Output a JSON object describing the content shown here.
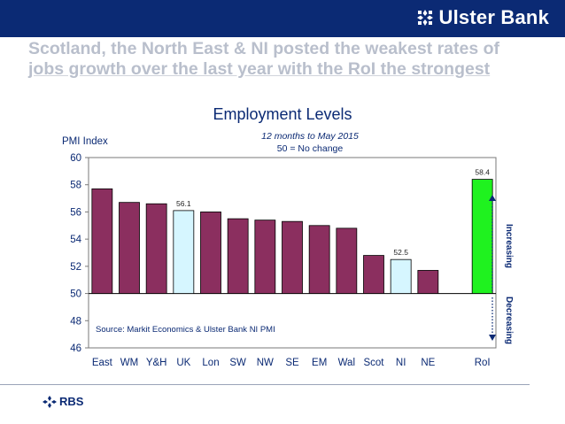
{
  "brand": {
    "name": "Ulster Bank",
    "icon": "ulster-bank-logo-icon"
  },
  "headline": {
    "line1": "Scotland, the North East & NI posted the weakest rates of",
    "line2": "jobs growth over the last year with the RoI the strongest"
  },
  "footer": {
    "rbs_label": "RBS",
    "icon": "rbs-logo-icon"
  },
  "chart_data": {
    "type": "bar",
    "title": "Employment Levels",
    "subtitle": "12 months to May 2015",
    "subtitle2": "50 = No change",
    "ylabel": "PMI Index",
    "xlabel": "",
    "source": "Source: Markit Economics & Ulster Bank NI PMI",
    "ylim": [
      46,
      60
    ],
    "baseline": 50,
    "yticks": [
      "46",
      "48",
      "50",
      "52",
      "54",
      "56",
      "58",
      "60"
    ],
    "categories": [
      "East",
      "WM",
      "Y&H",
      "UK",
      "Lon",
      "SW",
      "NW",
      "SE",
      "EM",
      "Wal",
      "Scot",
      "NI",
      "NE",
      "",
      "RoI"
    ],
    "values": [
      57.7,
      56.7,
      56.6,
      56.1,
      56.0,
      55.5,
      55.4,
      55.3,
      55.0,
      54.8,
      52.8,
      52.5,
      51.7,
      null,
      58.4
    ],
    "data_labels": {
      "3": "56.1",
      "11": "52.5",
      "14": "58.4"
    },
    "grid": false,
    "colors": {
      "default": "#8b2f5f",
      "highlight": "#d6f6ff",
      "roi": "#1ff21f",
      "text": "#0b2a74"
    },
    "highlight_indices": [
      3,
      11
    ],
    "roi_index": 14,
    "annotations": {
      "up": "Increasing",
      "down": "Decreasing"
    }
  }
}
